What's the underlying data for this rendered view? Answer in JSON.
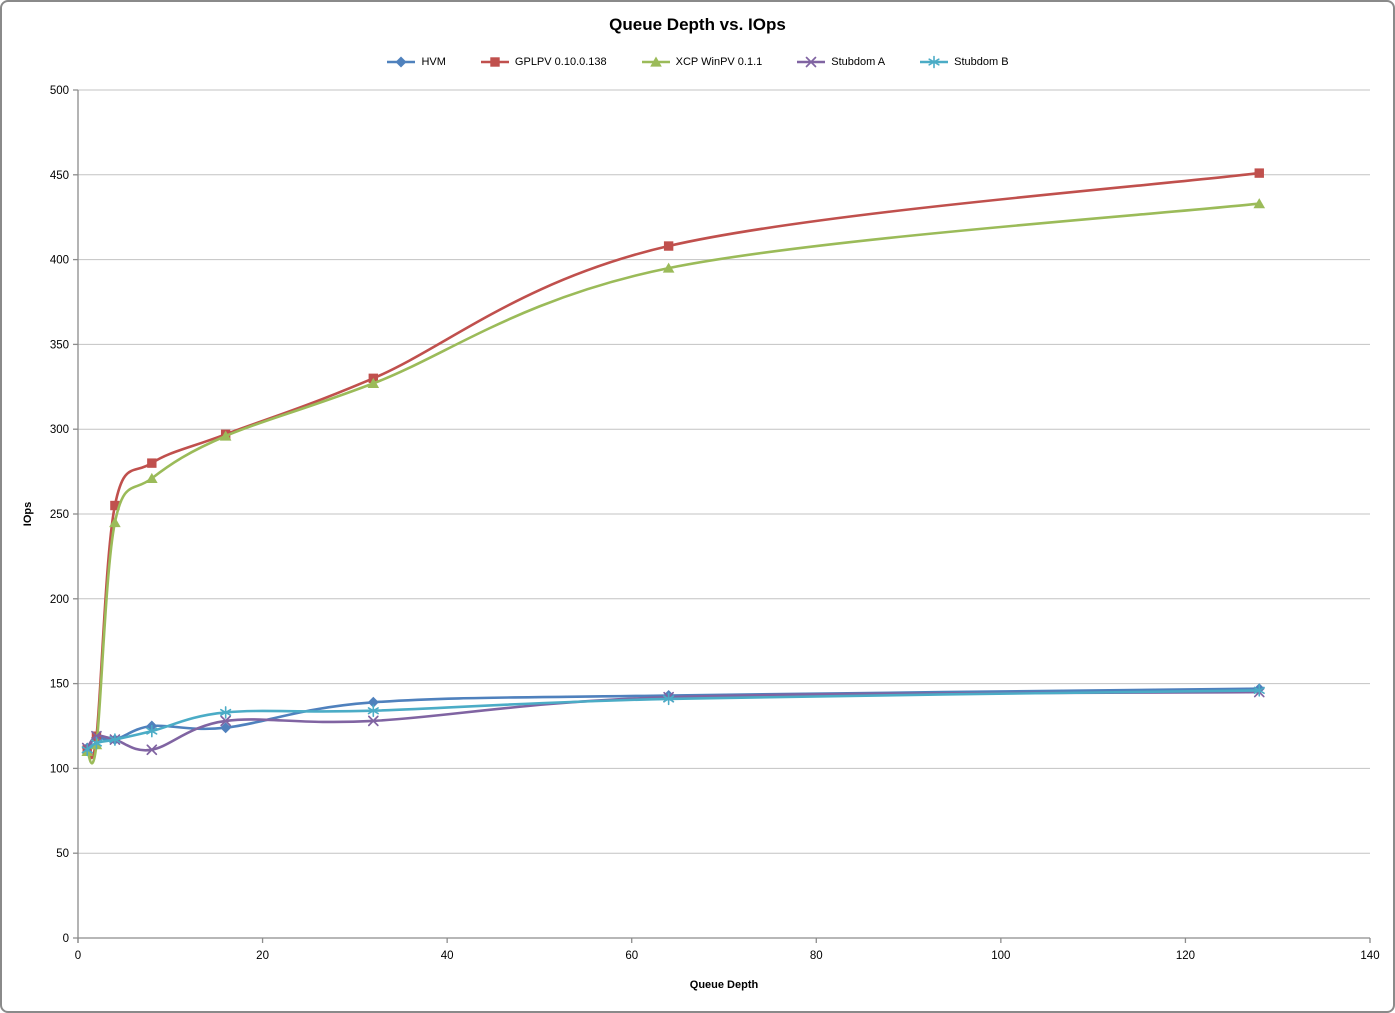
{
  "chart_data": {
    "type": "line",
    "title": "Queue Depth vs. IOps",
    "xlabel": "Queue Depth",
    "ylabel": "IOps",
    "xlim": [
      0,
      140
    ],
    "ylim": [
      0,
      500
    ],
    "x_ticks": [
      0,
      20,
      40,
      60,
      80,
      100,
      120,
      140
    ],
    "y_ticks": [
      0,
      50,
      100,
      150,
      200,
      250,
      300,
      350,
      400,
      450,
      500
    ],
    "grid": "horizontal-only",
    "legend_position": "top",
    "line_style": "smoothed-with-markers",
    "x": [
      1,
      2,
      4,
      8,
      16,
      32,
      64,
      128
    ],
    "series": [
      {
        "name": "HVM",
        "color": "#4F81BD",
        "marker": "diamond",
        "values": [
          112,
          118,
          117,
          125,
          124,
          139,
          143,
          147
        ]
      },
      {
        "name": "GPLPV 0.10.0.138",
        "color": "#C0504D",
        "marker": "square",
        "values": [
          111,
          119,
          255,
          280,
          297,
          330,
          408,
          451
        ]
      },
      {
        "name": "XCP WinPV 0.1.1",
        "color": "#9BBB59",
        "marker": "triangle",
        "values": [
          110,
          114,
          245,
          271,
          296,
          327,
          395,
          433
        ]
      },
      {
        "name": "Stubdom A",
        "color": "#8064A2",
        "marker": "x",
        "values": [
          112,
          119,
          117,
          111,
          128,
          128,
          142,
          145
        ]
      },
      {
        "name": "Stubdom B",
        "color": "#4BACC6",
        "marker": "star",
        "values": [
          111,
          115,
          117,
          122,
          133,
          134,
          141,
          146
        ]
      }
    ],
    "axis_color": "#8C8C8C",
    "gridline_color": "#C3C3C3",
    "text_color": "#000000",
    "background_color": "#FFFFFF"
  }
}
